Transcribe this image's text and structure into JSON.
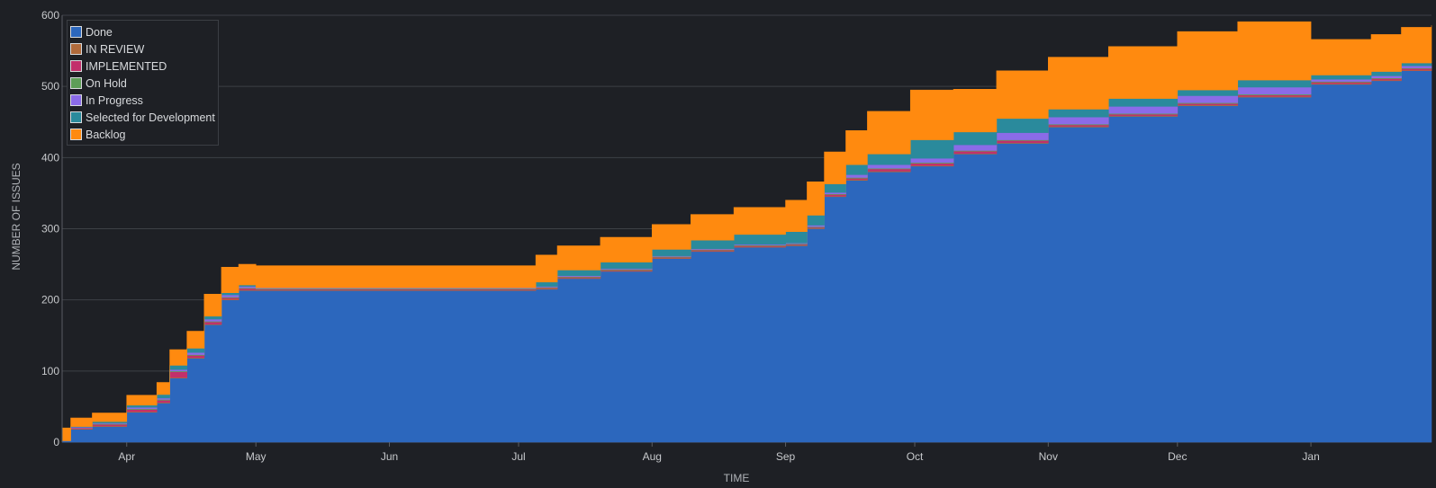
{
  "chart_data": {
    "type": "area",
    "stacked": true,
    "step": true,
    "title": "",
    "xlabel": "TIME",
    "ylabel": "NUMBER OF ISSUES",
    "ylim": [
      0,
      600
    ],
    "yticks": [
      0,
      100,
      200,
      300,
      400,
      500,
      600
    ],
    "xlim": [
      "2023-03-17",
      "2024-01-29"
    ],
    "xticks": [
      {
        "label": "Apr",
        "date": "2023-04-01"
      },
      {
        "label": "May",
        "date": "2023-05-01"
      },
      {
        "label": "Jun",
        "date": "2023-06-01"
      },
      {
        "label": "Jul",
        "date": "2023-07-01"
      },
      {
        "label": "Aug",
        "date": "2023-08-01"
      },
      {
        "label": "Sep",
        "date": "2023-09-01"
      },
      {
        "label": "Oct",
        "date": "2023-10-01"
      },
      {
        "label": "Nov",
        "date": "2023-11-01"
      },
      {
        "label": "Dec",
        "date": "2023-12-01"
      },
      {
        "label": "Jan",
        "date": "2024-01-01"
      }
    ],
    "grid": true,
    "legend_position": "top-left",
    "x": [
      "2023-03-17",
      "2023-03-19",
      "2023-03-24",
      "2023-04-01",
      "2023-04-08",
      "2023-04-11",
      "2023-04-15",
      "2023-04-19",
      "2023-04-23",
      "2023-04-27",
      "2023-05-01",
      "2023-05-08",
      "2023-06-01",
      "2023-07-01",
      "2023-07-05",
      "2023-07-10",
      "2023-07-20",
      "2023-08-01",
      "2023-08-10",
      "2023-08-20",
      "2023-09-01",
      "2023-09-06",
      "2023-09-10",
      "2023-09-15",
      "2023-09-20",
      "2023-09-30",
      "2023-10-10",
      "2023-10-20",
      "2023-11-01",
      "2023-11-15",
      "2023-12-01",
      "2023-12-15",
      "2024-01-01",
      "2024-01-15",
      "2024-01-22",
      "2024-01-29"
    ],
    "series": [
      {
        "name": "Done",
        "color": "#2c67bd",
        "values": [
          2,
          18,
          22,
          42,
          55,
          90,
          118,
          165,
          200,
          213,
          213,
          213,
          213,
          213,
          215,
          230,
          240,
          258,
          268,
          274,
          276,
          300,
          345,
          368,
          380,
          388,
          405,
          420,
          443,
          458,
          473,
          485,
          503,
          508,
          522,
          525
        ]
      },
      {
        "name": "IN REVIEW",
        "color": "#b06a3b",
        "values": [
          0,
          1,
          1,
          1,
          1,
          1,
          1,
          1,
          1,
          1,
          1,
          1,
          1,
          1,
          1,
          1,
          1,
          1,
          1,
          1,
          1,
          1,
          1,
          1,
          1,
          1,
          1,
          1,
          1,
          1,
          1,
          1,
          1,
          1,
          1,
          1
        ]
      },
      {
        "name": "IMPLEMENTED",
        "color": "#c2306b",
        "values": [
          0,
          1,
          2,
          3,
          3,
          8,
          3,
          3,
          2,
          2,
          1,
          1,
          1,
          1,
          1,
          1,
          1,
          1,
          1,
          1,
          1,
          1,
          2,
          2,
          3,
          3,
          3,
          3,
          2,
          2,
          2,
          2,
          2,
          2,
          2,
          2
        ]
      },
      {
        "name": "On Hold",
        "color": "#5e9e58",
        "values": [
          0,
          0,
          1,
          1,
          1,
          1,
          1,
          1,
          1,
          1,
          1,
          1,
          1,
          1,
          1,
          1,
          1,
          1,
          1,
          1,
          1,
          1,
          1,
          1,
          1,
          1,
          1,
          1,
          1,
          1,
          1,
          1,
          1,
          1,
          1,
          1
        ]
      },
      {
        "name": "In Progress",
        "color": "#8b6be8",
        "values": [
          0,
          1,
          1,
          2,
          2,
          2,
          3,
          3,
          3,
          2,
          1,
          1,
          1,
          1,
          1,
          1,
          1,
          1,
          1,
          1,
          1,
          2,
          2,
          4,
          5,
          6,
          8,
          10,
          10,
          10,
          10,
          10,
          3,
          3,
          3,
          3
        ]
      },
      {
        "name": "Selected for Development",
        "color": "#2a8a9c",
        "values": [
          0,
          1,
          2,
          3,
          5,
          6,
          6,
          4,
          3,
          2,
          0,
          0,
          0,
          0,
          6,
          8,
          9,
          9,
          12,
          14,
          16,
          14,
          12,
          14,
          15,
          26,
          18,
          20,
          11,
          11,
          8,
          10,
          6,
          6,
          4,
          4
        ]
      },
      {
        "name": "Backlog",
        "color": "#ff8a0f",
        "values": [
          18,
          12,
          12,
          14,
          17,
          22,
          24,
          31,
          36,
          29,
          31,
          31,
          31,
          31,
          38,
          34,
          35,
          35,
          36,
          38,
          44,
          47,
          45,
          48,
          60,
          70,
          60,
          67,
          73,
          73,
          82,
          82,
          50,
          52,
          50,
          50
        ]
      }
    ]
  }
}
